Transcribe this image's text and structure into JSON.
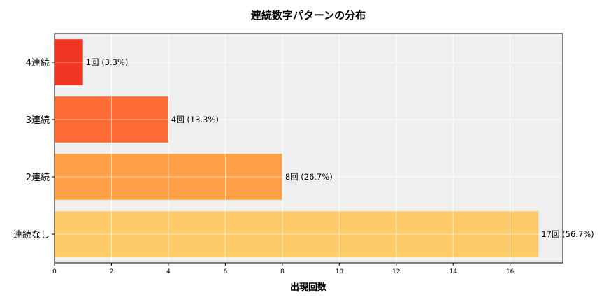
{
  "chart_data": {
    "type": "bar",
    "orientation": "horizontal",
    "title": "連続数字パターンの分布",
    "xlabel": "出現回数",
    "ylabel": "",
    "categories": [
      "4連続",
      "3連続",
      "2連続",
      "連続なし"
    ],
    "values": [
      1,
      4,
      8,
      17
    ],
    "data_labels": [
      "1回 (3.3%)",
      "4回 (13.3%)",
      "8回 (26.7%)",
      "17回 (56.7%)"
    ],
    "colors": [
      "#f03523",
      "#fd6a33",
      "#fea047",
      "#fecb6a"
    ],
    "xlim": [
      0,
      17.85
    ],
    "xticks": [
      0,
      2,
      4,
      6,
      8,
      10,
      12,
      14,
      16
    ],
    "grid": true,
    "background": "#efefef"
  }
}
